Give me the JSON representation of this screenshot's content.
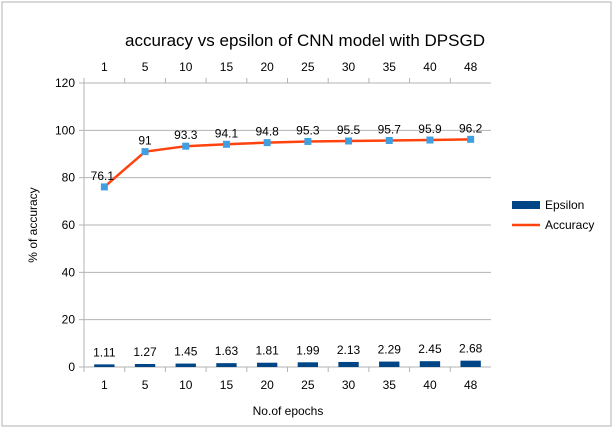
{
  "chart_data": {
    "type": "bar+line",
    "title": "accuracy vs epsilon of CNN model with DPSGD",
    "xlabel": "No.of epochs",
    "ylabel": "% of accuracy",
    "categories": [
      "1",
      "5",
      "10",
      "15",
      "20",
      "25",
      "30",
      "35",
      "40",
      "48"
    ],
    "ylim": [
      0,
      120
    ],
    "yticks": [
      0,
      20,
      40,
      60,
      80,
      100,
      120
    ],
    "grid": true,
    "legend_position": "right",
    "series": [
      {
        "name": "Epsilon",
        "kind": "bar",
        "color": "#004586",
        "values": [
          1.11,
          1.27,
          1.45,
          1.63,
          1.81,
          1.99,
          2.13,
          2.29,
          2.45,
          2.68
        ],
        "labels": [
          "1.11",
          "1.27",
          "1.45",
          "1.63",
          "1.81",
          "1.99",
          "2.13",
          "2.29",
          "2.45",
          "2.68"
        ]
      },
      {
        "name": "Accuracy",
        "kind": "line",
        "color": "#ff420e",
        "marker_color": "#3f9fe0",
        "values": [
          76.1,
          91,
          93.3,
          94.1,
          94.8,
          95.3,
          95.5,
          95.7,
          95.9,
          96.2
        ],
        "labels": [
          "76.1",
          "91",
          "93.3",
          "94.1",
          "94.8",
          "95.3",
          "95.5",
          "95.7",
          "95.9",
          "96.2"
        ]
      }
    ]
  }
}
